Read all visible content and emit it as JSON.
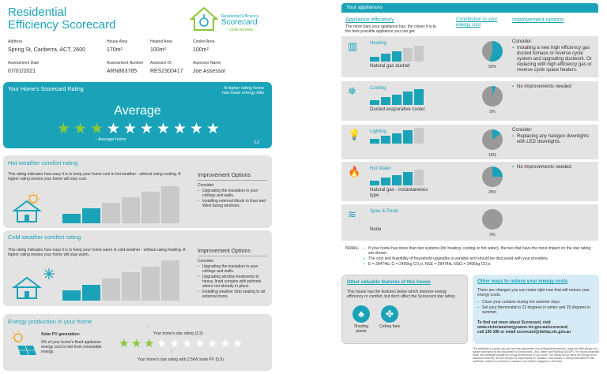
{
  "header": {
    "title_line1": "Residential",
    "title_line2": "Efficiency Scorecard",
    "logo_line1": "Residential Efficiency",
    "logo_line2": "Scorecard",
    "logo_line3": "STAR RATING"
  },
  "info": {
    "address_label": "Address",
    "address": "Spring St, Canberra, ACT, 2600",
    "house_area_label": "House Area",
    "house_area": "170m²",
    "heated_area_label": "Heated Area",
    "heated_area": "100m²",
    "cooled_area_label": "Cooled Area",
    "cooled_area": "100m²",
    "date_label": "Assessment Date",
    "date": "07/01/2021",
    "number_label": "Assessment Number",
    "number": "ARN863785",
    "assessor_id_label": "Assessor ID",
    "assessor_id": "RES2300417",
    "assessor_name_label": "Assessor Name",
    "assessor_name": "Joe Assessor"
  },
  "rating": {
    "title": "Your Home's Scorecard Rating",
    "note_line1": "A higher rating home",
    "note_line2": "has lower energy bills",
    "label": "Average",
    "stars_total": 10,
    "stars_filled": 3,
    "pointer_label": "Average home",
    "score": "3.3"
  },
  "hot": {
    "title": "Hot weather comfort rating",
    "desc": "This rating indicates how easy it is to keep your home cool in hot weather - without using cooling. A higher rating means your home will stay cool.",
    "level": 2,
    "improve_title": "Improvement Options",
    "consider": "Consider:",
    "items": [
      "Upgrading the insulation in your ceilings and walls.",
      "Installing external blinds to East and West facing windows."
    ]
  },
  "cold": {
    "title": "Cold weather comfort rating",
    "desc": "This rating indicates how easy it is to keep your home warm in cold weather - without using heating. A higher rating means your home will stay warm.",
    "level": 2,
    "improve_title": "Improvement Options",
    "consider": "Consider:",
    "items": [
      "Upgrading the insulation in your ceilings and walls.",
      "Upgrading window treatments to heavy, lined curtains with pelmets where not already in place.",
      "Installing weather strip sealing to all external doors."
    ]
  },
  "energy": {
    "title": "Energy production in your home",
    "solar_label": "Solar PV generation:",
    "solar_desc": "0% of your home's fixed appliance energy cost is met from renewable energy.",
    "star_rating_label": "Your home's star rating (3.3)",
    "pv_rating_label": "Your home's star rating with 2.5kW solar PV (5.9)"
  },
  "appliances": {
    "title": "Your appliances",
    "col1": "Appliance efficiency",
    "col1_desc": "The more bars your appliance has, the closer it is to the best possible appliance you can get.",
    "col2": "Contribution to your energy cost",
    "col3": "Improvement options",
    "rows": [
      {
        "name": "Heating",
        "type": "Natural gas ducted",
        "level": 3,
        "pct": "55%",
        "share": 0.55,
        "consider": "Consider:",
        "options": [
          "Installing a new high efficiency gas ducted furnace or reverse cycle system and upgrading ductwork. Or replacing with high efficiency gas or reverse cycle space heaters."
        ]
      },
      {
        "name": "Cooling",
        "type": "Ducted evaporative cooler",
        "level": 5,
        "pct": "5%",
        "share": 0.05,
        "consider": "",
        "options": [
          "No improvements needed"
        ]
      },
      {
        "name": "Lighting",
        "type": "",
        "level": 4,
        "pct": "15%",
        "share": 0.15,
        "consider": "Consider:",
        "options": [
          "Replacing any halogen downlights with LED downlights."
        ]
      },
      {
        "name": "Hot Water",
        "type": "Natural gas - instantaneous type",
        "level": 4,
        "pct": "25%",
        "share": 0.25,
        "consider": "",
        "options": [
          "No improvements needed"
        ]
      },
      {
        "name": "Spas & Pools",
        "type": "None",
        "level": 0,
        "pct": "0%",
        "share": 0.0,
        "consider": "",
        "options": []
      }
    ]
  },
  "notes": {
    "label": "Notes:",
    "items": [
      "If your home has more than two systems (for heating, cooling or hot water), the two that have the most impact on the star rating are shown.",
      "The cost and feasibility of household upgrades is variable and should be discussed with your providers.",
      "E = 28474kL G = 2495kg CO₂e, NSE = 28474kL NSG = 2495kg CO₂e"
    ]
  },
  "features": {
    "title": "Other valuable features of this house",
    "desc": "This house has the features below which improve energy efficiency or comfort, but don't affect the Scorecard star rating.",
    "items": [
      "Shading plants",
      "Ceiling fans"
    ]
  },
  "reduce": {
    "title": "Other ways to reduce your energy costs",
    "desc": "There are changes you can make right now that will reduce your energy costs.",
    "items": [
      "Close your curtains during hot summer days.",
      "Set your thermostat to 21 degrees in winter and 25 degrees in summer."
    ],
    "find_line1": "To find out more about Scorecard, visit",
    "find_line2": "www.victorianenergysaver.vic.gov.au/scorecard,",
    "find_line3": "call 136 186 or email scorecard@delwp.vic.gov.au"
  },
  "footer": {
    "text": "This certificate is a guide only and has been generated by an independent assessor, using the initial release of a system developed by the Department of Environment, Land, Water and Planning (DELWP). The results presented within this certificate indicate the energy performance of your home. The results do not reflect the energy use of individual residents. DELWP accepts no responsibility for mistakes, inaccuracies or misrepresentations in this certificate, whether by technical or omission, and whether negligent or otherwise."
  },
  "colors": {
    "accent": "#1aa3b8",
    "star_green": "#8dc63f",
    "panel": "#e3e3e3"
  }
}
